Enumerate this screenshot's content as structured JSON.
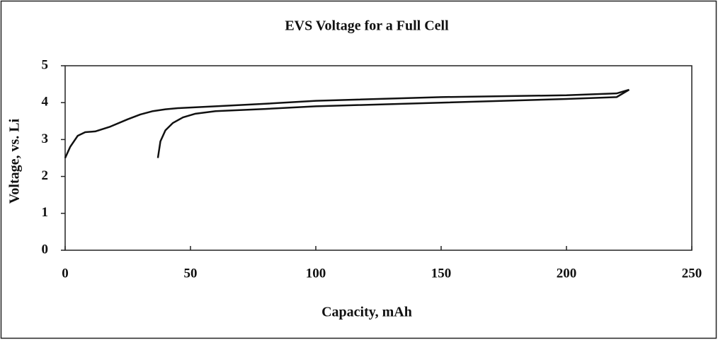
{
  "chart_data": {
    "type": "line",
    "title": "EVS Voltage for a Full Cell",
    "x_label": "Capacity, mAh",
    "y_label": "Voltage, vs. Li",
    "xlim": [
      0,
      250
    ],
    "xticks": [
      0,
      50,
      100,
      150,
      200,
      250
    ],
    "ylim": [
      0,
      5
    ],
    "yticks": [
      0,
      1,
      2,
      3,
      4,
      5
    ],
    "series": [
      {
        "color": "#111111",
        "x": [
          0,
          2,
          5,
          8,
          12,
          18,
          25,
          30,
          35,
          40,
          45,
          60,
          80,
          100,
          150,
          200,
          220,
          225
        ],
        "values": [
          2.5,
          2.8,
          3.1,
          3.2,
          3.22,
          3.35,
          3.55,
          3.68,
          3.77,
          3.82,
          3.85,
          3.9,
          3.97,
          4.05,
          4.15,
          4.2,
          4.25,
          4.35
        ]
      },
      {
        "color": "#111111",
        "x": [
          37,
          38,
          40,
          43,
          47,
          52,
          60,
          80,
          100,
          150,
          200,
          220,
          225
        ],
        "values": [
          2.5,
          2.95,
          3.25,
          3.45,
          3.6,
          3.7,
          3.77,
          3.83,
          3.9,
          4.0,
          4.1,
          4.15,
          4.35
        ]
      }
    ]
  }
}
